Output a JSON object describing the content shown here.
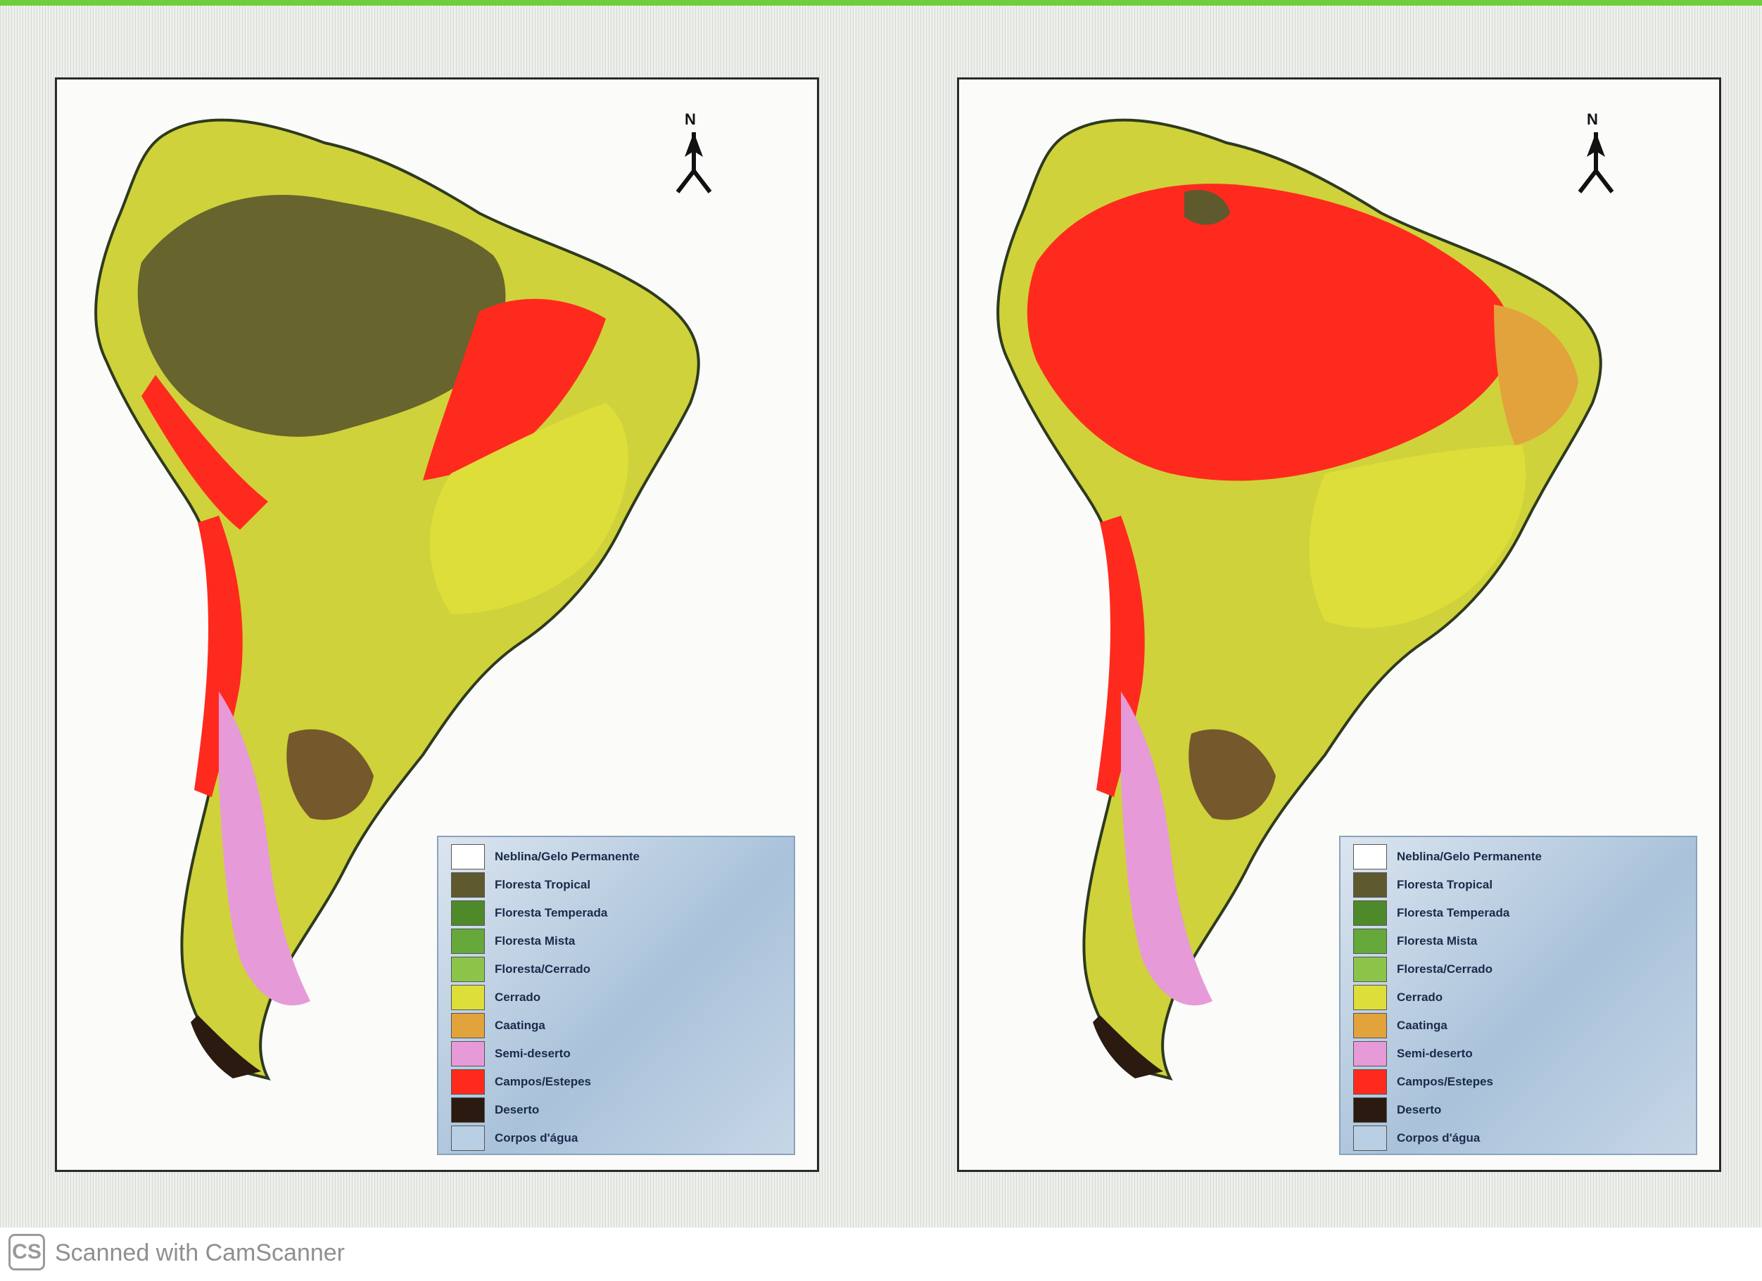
{
  "watermark": {
    "logo_text": "CS",
    "text": "Scanned with CamScanner"
  },
  "maps": [
    {
      "id": "left",
      "north_letter": "N",
      "legend": [
        {
          "label": "Neblina/Gelo Permanente",
          "color": "#ffffff"
        },
        {
          "label": "Floresta Tropical",
          "color": "#5e5a2e"
        },
        {
          "label": "Floresta Temperada",
          "color": "#4f8a2a"
        },
        {
          "label": "Floresta Mista",
          "color": "#66a83a"
        },
        {
          "label": "Floresta/Cerrado",
          "color": "#8cc44a"
        },
        {
          "label": "Cerrado",
          "color": "#dede3a"
        },
        {
          "label": "Caatinga",
          "color": "#e2a23c"
        },
        {
          "label": "Semi-deserto",
          "color": "#e69ad8"
        },
        {
          "label": "Campos/Estepes",
          "color": "#ff2a1e"
        },
        {
          "label": "Deserto",
          "color": "#2a1a10"
        },
        {
          "label": "Corpos d'água",
          "color": "#b9cfe3"
        }
      ]
    },
    {
      "id": "right",
      "north_letter": "N",
      "legend": [
        {
          "label": "Neblina/Gelo Permanente",
          "color": "#ffffff"
        },
        {
          "label": "Floresta Tropical",
          "color": "#5e5a2e"
        },
        {
          "label": "Floresta Temperada",
          "color": "#4f8a2a"
        },
        {
          "label": "Floresta Mista",
          "color": "#66a83a"
        },
        {
          "label": "Floresta/Cerrado",
          "color": "#8cc44a"
        },
        {
          "label": "Cerrado",
          "color": "#dede3a"
        },
        {
          "label": "Caatinga",
          "color": "#e2a23c"
        },
        {
          "label": "Semi-deserto",
          "color": "#e69ad8"
        },
        {
          "label": "Campos/Estepes",
          "color": "#ff2a1e"
        },
        {
          "label": "Deserto",
          "color": "#2a1a10"
        },
        {
          "label": "Corpos d'água",
          "color": "#b9cfe3"
        }
      ]
    }
  ]
}
